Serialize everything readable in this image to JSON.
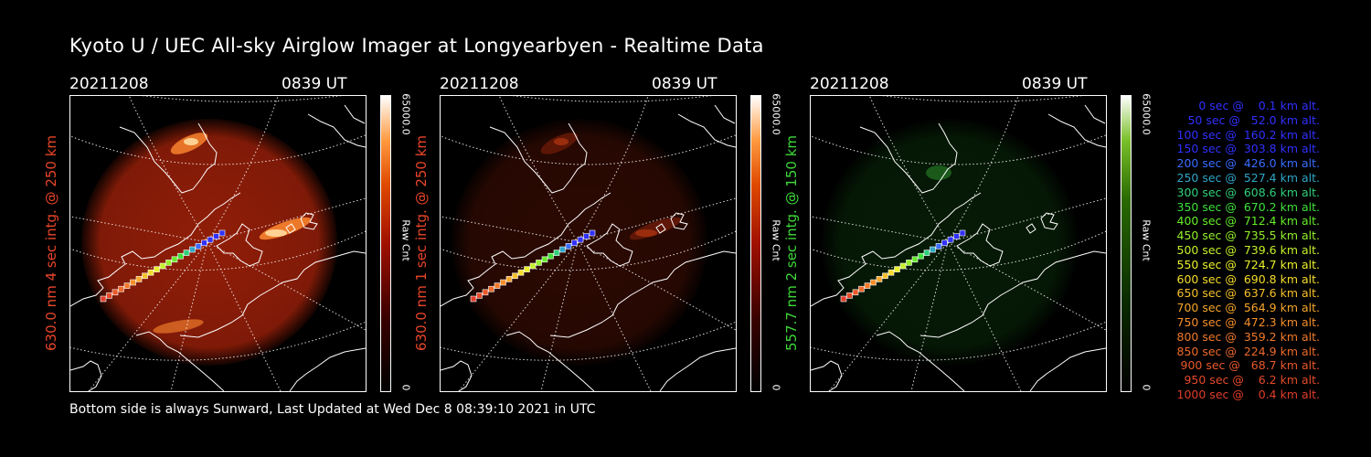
{
  "title": "Kyoto U / UEC All-sky Airglow Imager at Longyearbyen - Realtime Data",
  "footer": "Bottom side is always Sunward, Last Updated at Wed Dec  8 08:39:10 2021 in UTC",
  "panels": [
    {
      "date": "20211208",
      "time": "0839 UT",
      "ylabel": "630.0 nm 4 sec intg. @ 250 km",
      "label_color": "#e8452a",
      "cbar_max": "65000.0",
      "cbar_min": "0",
      "cbar_unit": "Raw Cnt",
      "colormap": "red",
      "brightness": 1.0
    },
    {
      "date": "20211208",
      "time": "0839 UT",
      "ylabel": "630.0 nm 1 sec intg. @ 250 km",
      "label_color": "#e8452a",
      "cbar_max": "65000.0",
      "cbar_min": "0",
      "cbar_unit": "Raw Cnt",
      "colormap": "red",
      "brightness": 0.3
    },
    {
      "date": "20211208",
      "time": "0839 UT",
      "ylabel": "557.7 nm 2 sec intg. @ 150 km",
      "label_color": "#3fd83a",
      "cbar_max": "65000.0",
      "cbar_min": "0",
      "cbar_unit": "Raw Cnt",
      "colormap": "green",
      "brightness": 0.35
    }
  ],
  "legend": [
    {
      "text": "   0 sec @    0.1 km alt.",
      "color": "#3030ff"
    },
    {
      "text": "  50 sec @   52.0 km alt.",
      "color": "#3030ff"
    },
    {
      "text": " 100 sec @  160.2 km alt.",
      "color": "#3030ff"
    },
    {
      "text": " 150 sec @  303.8 km alt.",
      "color": "#3030ff"
    },
    {
      "text": " 200 sec @  426.0 km alt.",
      "color": "#3a6cff"
    },
    {
      "text": " 250 sec @  527.4 km alt.",
      "color": "#2fa6c8"
    },
    {
      "text": " 300 sec @  608.6 km alt.",
      "color": "#2fd07a"
    },
    {
      "text": " 350 sec @  670.2 km alt.",
      "color": "#3ee03a"
    },
    {
      "text": " 400 sec @  712.4 km alt.",
      "color": "#64ec2a"
    },
    {
      "text": " 450 sec @  735.5 km alt.",
      "color": "#94f02a"
    },
    {
      "text": " 500 sec @  739.6 km alt.",
      "color": "#c4f02a"
    },
    {
      "text": " 550 sec @  724.7 km alt.",
      "color": "#eaf02a"
    },
    {
      "text": " 600 sec @  690.8 km alt.",
      "color": "#f6dc2a"
    },
    {
      "text": " 650 sec @  637.6 km alt.",
      "color": "#f6c02a"
    },
    {
      "text": " 700 sec @  564.9 km alt.",
      "color": "#f6a62a"
    },
    {
      "text": " 750 sec @  472.3 km alt.",
      "color": "#f58e2a"
    },
    {
      "text": " 800 sec @  359.2 km alt.",
      "color": "#f07a2a"
    },
    {
      "text": " 850 sec @  224.9 km alt.",
      "color": "#ec6a2a"
    },
    {
      "text": " 900 sec @   68.7 km alt.",
      "color": "#e8582a"
    },
    {
      "text": " 950 sec @    6.2 km alt.",
      "color": "#e44a2a"
    },
    {
      "text": "1000 sec @    0.4 km alt.",
      "color": "#e03c2a"
    }
  ]
}
